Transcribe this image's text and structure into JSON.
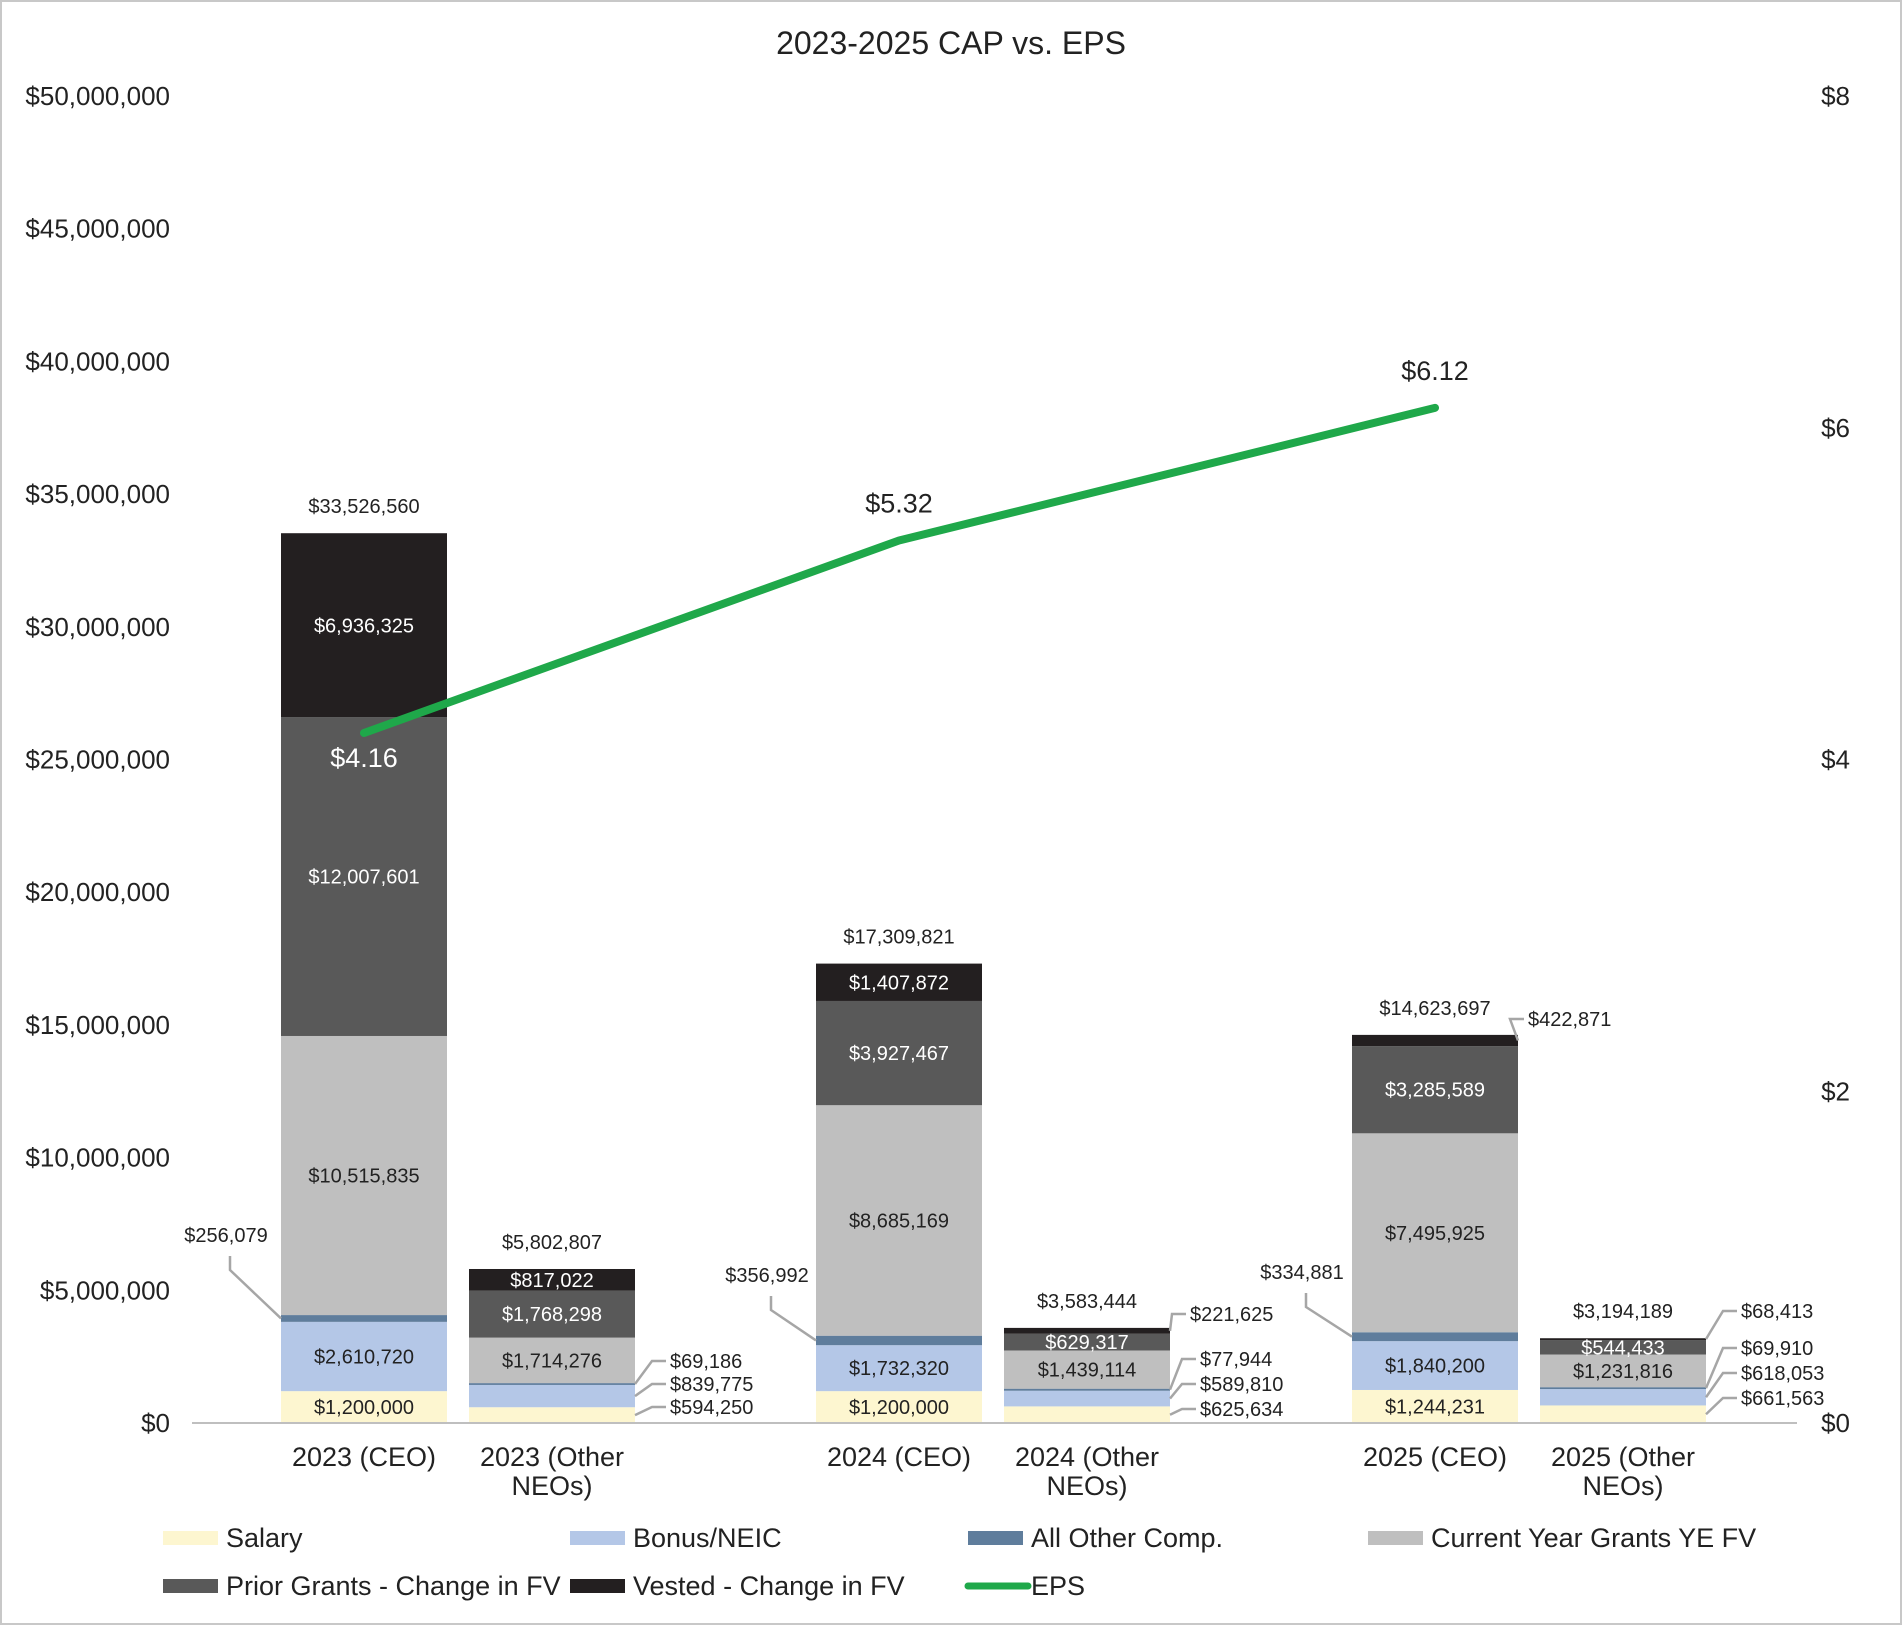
{
  "chart_data": {
    "type": "bar",
    "stacked": true,
    "title": "2023-2025 CAP vs. EPS",
    "categories": [
      "2023 (CEO)",
      "2023 (Other NEOs)",
      "2024 (CEO)",
      "2024 (Other NEOs)",
      "2025 (CEO)",
      "2025 (Other NEOs)"
    ],
    "category_label_lines": [
      [
        "2023 (CEO)"
      ],
      [
        "2023 (Other",
        "NEOs)"
      ],
      [
        "2024 (CEO)"
      ],
      [
        "2024 (Other",
        "NEOs)"
      ],
      [
        "2025 (CEO)"
      ],
      [
        "2025 (Other",
        "NEOs)"
      ]
    ],
    "series": [
      {
        "name": "Salary",
        "color": "#fdf6d0",
        "values": [
          1200000,
          594250,
          1200000,
          625634,
          1244231,
          661563
        ],
        "labels": [
          "$1,200,000",
          "$594,250",
          "$1,200,000",
          "$625,634",
          "$1,244,231",
          "$661,563"
        ]
      },
      {
        "name": "Bonus/NEIC",
        "color": "#b4c7e7",
        "values": [
          2610720,
          839775,
          1732320,
          589810,
          1840200,
          618053
        ],
        "labels": [
          "$2,610,720",
          "$839,775",
          "$1,732,320",
          "$589,810",
          "$1,840,200",
          "$618,053"
        ]
      },
      {
        "name": "All Other Comp.",
        "color": "#5f7d9c",
        "values": [
          256079,
          69186,
          356992,
          77944,
          334881,
          69910
        ],
        "labels": [
          "$256,079",
          "$69,186",
          "$356,992",
          "$77,944",
          "$334,881",
          "$69,910"
        ]
      },
      {
        "name": "Current Year Grants YE FV",
        "color": "#bfbfbf",
        "values": [
          10515835,
          1714276,
          8685169,
          1439114,
          7495925,
          1231816
        ],
        "labels": [
          "$10,515,835",
          "$1,714,276",
          "$8,685,169",
          "$1,439,114",
          "$7,495,925",
          "$1,231,816"
        ]
      },
      {
        "name": "Prior Grants - Change in FV",
        "color": "#595959",
        "values": [
          12007601,
          1768298,
          3927467,
          629317,
          3285589,
          544433
        ],
        "labels": [
          "$12,007,601",
          "$1,768,298",
          "$3,927,467",
          "$629,317",
          "$3,285,589",
          "$544,433"
        ]
      },
      {
        "name": "Vested - Change in FV",
        "color": "#231f20",
        "values": [
          6936325,
          817022,
          1407872,
          221625,
          422871,
          68413
        ],
        "labels": [
          "$6,936,325",
          "$817,022",
          "$1,407,872",
          "$221,625",
          "$422,871",
          "$68,413"
        ]
      }
    ],
    "totals": [
      33526560,
      5802807,
      17309821,
      3583444,
      14623697,
      3194189
    ],
    "total_labels": [
      "$33,526,560",
      "$5,802,807",
      "$17,309,821",
      "$3,583,444",
      "$14,623,697",
      "$3,194,189"
    ],
    "line_series": {
      "name": "EPS",
      "color": "#1fa84a",
      "axis": "right",
      "categories": [
        "2023 (CEO)",
        "2024 (CEO)",
        "2025 (CEO)"
      ],
      "values": [
        4.16,
        5.32,
        6.12
      ],
      "labels": [
        "$4.16",
        "$5.32",
        "$6.12"
      ]
    },
    "ylim": [
      0,
      50000000
    ],
    "y_ticks": [
      "$0",
      "$5,000,000",
      "$10,000,000",
      "$15,000,000",
      "$20,000,000",
      "$25,000,000",
      "$30,000,000",
      "$35,000,000",
      "$40,000,000",
      "$45,000,000",
      "$50,000,000"
    ],
    "y2lim": [
      0,
      8
    ],
    "y2_ticks": [
      "$0",
      "$2",
      "$4",
      "$6",
      "$8"
    ],
    "grid": false,
    "legend_position": "bottom",
    "legend": [
      "Salary",
      "Bonus/NEIC",
      "All Other Comp.",
      "Current Year Grants YE FV",
      "Prior Grants - Change in FV",
      "Vested - Change in FV",
      "EPS"
    ]
  }
}
